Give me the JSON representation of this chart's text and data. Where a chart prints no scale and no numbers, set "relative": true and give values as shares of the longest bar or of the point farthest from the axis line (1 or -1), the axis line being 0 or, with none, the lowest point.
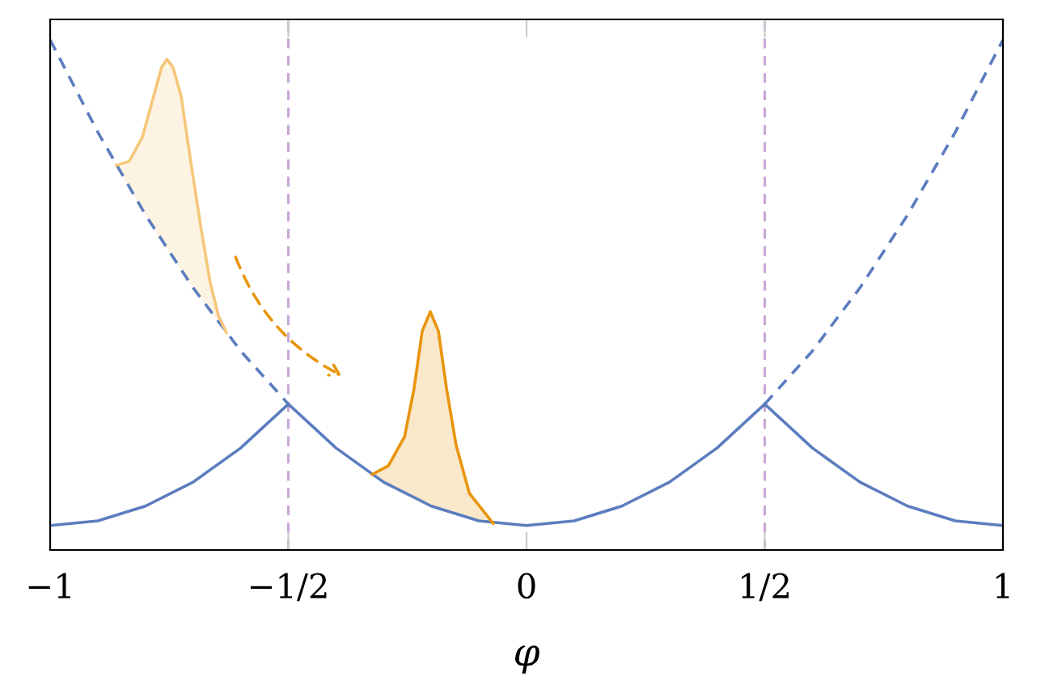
{
  "chart_data": {
    "type": "line",
    "relative": true,
    "xlabel": "φ",
    "xlim": [
      -1,
      1
    ],
    "xticks": [
      {
        "value": -1,
        "label": "−1"
      },
      {
        "value": -0.5,
        "label": "−1/2"
      },
      0,
      {
        "value": 0.5,
        "label": "1/2"
      },
      1
    ],
    "tick_labels": "x",
    "grid": false,
    "legend": false,
    "marker": "none",
    "series": [
      {
        "color": "#5b7dbf",
        "line_style": "solid",
        "x": [
          -1,
          -0.9,
          -0.8,
          -0.7,
          -0.6,
          -0.5,
          -0.4,
          -0.3,
          -0.2,
          -0.1,
          0,
          0.1,
          0.2,
          0.3,
          0.4,
          0.5,
          0.6,
          0.7,
          0.8,
          0.9,
          1
        ],
        "values": [
          0.048,
          0.057,
          0.086,
          0.133,
          0.2,
          0.286,
          0.2,
          0.133,
          0.086,
          0.057,
          0.048,
          0.057,
          0.086,
          0.133,
          0.2,
          0.286,
          0.2,
          0.133,
          0.086,
          0.057,
          0.048
        ]
      },
      {
        "color": "#5b7dbf",
        "line_style": "dashed",
        "x": [
          -1,
          -0.9,
          -0.8,
          -0.7,
          -0.6,
          -0.5
        ],
        "values": [
          1.0,
          0.819,
          0.657,
          0.514,
          0.39,
          0.286
        ]
      },
      {
        "color": "#5b7dbf",
        "line_style": "dashed",
        "x": [
          0.5,
          0.6,
          0.7,
          0.8,
          0.9,
          1
        ],
        "values": [
          0.286,
          0.39,
          0.514,
          0.657,
          0.819,
          1.0
        ]
      },
      {
        "color": "#f5c77a",
        "line_style": "solid",
        "x": [
          -0.861,
          -0.834,
          -0.806,
          -0.783,
          -0.766,
          -0.755,
          -0.742,
          -0.725,
          -0.705,
          -0.684,
          -0.664,
          -0.647,
          -0.63
        ],
        "values": [
          0.754,
          0.762,
          0.81,
          0.889,
          0.946,
          0.962,
          0.946,
          0.889,
          0.762,
          0.635,
          0.524,
          0.46,
          0.426
        ],
        "lower": [
          0.754,
          0.71,
          0.666,
          0.631,
          0.606,
          0.59,
          0.572,
          0.548,
          0.521,
          0.493,
          0.468,
          0.446,
          0.426
        ],
        "upper": [
          0.754,
          0.762,
          0.81,
          0.889,
          0.946,
          0.962,
          0.946,
          0.889,
          0.762,
          0.635,
          0.524,
          0.46,
          0.426
        ]
      },
      {
        "color": "#e8950e",
        "line_style": "solid",
        "x": [
          -0.324,
          -0.29,
          -0.256,
          -0.236,
          -0.219,
          -0.202,
          -0.185,
          -0.168,
          -0.148,
          -0.12,
          -0.07
        ],
        "values": [
          0.148,
          0.165,
          0.222,
          0.317,
          0.429,
          0.467,
          0.429,
          0.317,
          0.206,
          0.111,
          0.052
        ],
        "lower": [
          0.148,
          0.128,
          0.11,
          0.101,
          0.093,
          0.086,
          0.08,
          0.075,
          0.069,
          0.061,
          0.052
        ],
        "upper": [
          0.148,
          0.165,
          0.222,
          0.317,
          0.429,
          0.467,
          0.429,
          0.317,
          0.206,
          0.111,
          0.052
        ]
      }
    ],
    "ref_lines": [
      {
        "axis": "x",
        "value": -0.5,
        "color": "#c9a6d6",
        "line_style": "dashed"
      },
      {
        "axis": "x",
        "value": 0.5,
        "color": "#c9a6d6",
        "line_style": "dashed"
      }
    ]
  }
}
